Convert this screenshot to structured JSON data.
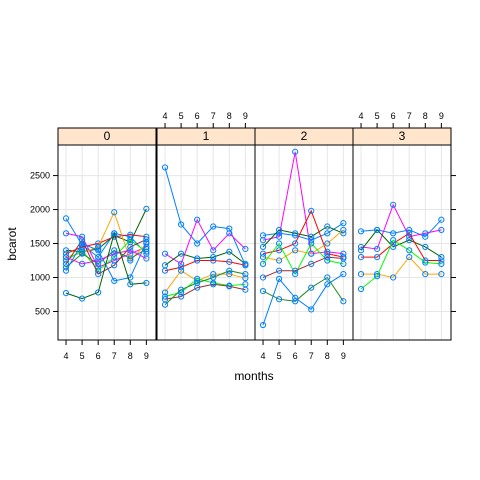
{
  "chart_data": {
    "type": "line",
    "xlabel": "months",
    "ylabel": "bcarot",
    "xlim": [
      3.5,
      9.6
    ],
    "ylim": [
      80,
      2950
    ],
    "x_ticks": [
      4,
      5,
      6,
      7,
      8,
      9
    ],
    "y_ticks": [
      500,
      1000,
      1500,
      2000,
      2500
    ],
    "grid": true,
    "strip_color": "#ffe5cc",
    "panel_border_color": "#000000",
    "grid_color": "#e6e6e6",
    "point_color": "#0080ff",
    "line_colors": [
      "#0080ff",
      "#ff00ff",
      "#006400",
      "#ff0000",
      "#ffa500",
      "#00ff00",
      "#a52a2a",
      "#228b22"
    ],
    "panels": [
      {
        "strip": "0",
        "series": [
          {
            "x": [
              4,
              5,
              6,
              7,
              8,
              9
            ],
            "y": [
              1870,
              1480,
              1300,
              1650,
              1600,
              1350
            ]
          },
          {
            "x": [
              4,
              5,
              6,
              7,
              8,
              9
            ],
            "y": [
              1650,
              1600,
              1150,
              1250,
              1350,
              1450
            ]
          },
          {
            "x": [
              4,
              5,
              6,
              7,
              8,
              9
            ],
            "y": [
              1400,
              1380,
              1420,
              1620,
              1520,
              2010
            ]
          },
          {
            "x": [
              4,
              5,
              6,
              7,
              8,
              9
            ],
            "y": [
              1350,
              1450,
              1500,
              1600,
              1630,
              1600
            ]
          },
          {
            "x": [
              4,
              5,
              6,
              7,
              8,
              9
            ],
            "y": [
              1300,
              1360,
              1450,
              1960,
              1250,
              1500
            ]
          },
          {
            "x": [
              4,
              5,
              6,
              7,
              8,
              9
            ],
            "y": [
              1250,
              1400,
              1100,
              1300,
              1550,
              1380
            ]
          },
          {
            "x": [
              4,
              5,
              6,
              7,
              8,
              9
            ],
            "y": [
              1200,
              1550,
              1050,
              1180,
              1450,
              1560
            ]
          },
          {
            "x": [
              4,
              5,
              6,
              7,
              8,
              9
            ],
            "y": [
              1150,
              1350,
              1200,
              1400,
              1280,
              1420
            ]
          },
          {
            "x": [
              4,
              5,
              6,
              7,
              8,
              9
            ],
            "y": [
              1100,
              1500,
              1400,
              950,
              1000,
              1520
            ]
          },
          {
            "x": [
              4,
              5,
              6,
              7,
              8,
              9
            ],
            "y": [
              1300,
              1200,
              1250,
              1350,
              1400,
              1280
            ]
          },
          {
            "x": [
              4,
              5,
              6,
              7,
              8,
              9
            ],
            "y": [
              770,
              690,
              780,
              1650,
              900,
              920
            ]
          }
        ]
      },
      {
        "strip": "1",
        "series": [
          {
            "x": [
              4,
              5,
              6,
              7,
              8,
              9
            ],
            "y": [
              2620,
              1780,
              1500,
              1750,
              1720,
              1180
            ]
          },
          {
            "x": [
              4,
              5,
              6,
              7,
              8,
              9
            ],
            "y": [
              1350,
              1200,
              1850,
              1400,
              1650,
              1420
            ]
          },
          {
            "x": [
              4,
              5,
              6,
              7,
              8,
              9
            ],
            "y": [
              1180,
              1350,
              1280,
              1300,
              1380,
              1200
            ]
          },
          {
            "x": [
              4,
              5,
              6,
              7,
              8,
              9
            ],
            "y": [
              1100,
              1150,
              1250,
              1250,
              1230,
              1180
            ]
          },
          {
            "x": [
              4,
              5,
              6,
              7,
              8,
              9
            ],
            "y": [
              780,
              1100,
              950,
              1050,
              1050,
              990
            ]
          },
          {
            "x": [
              4,
              5,
              6,
              7,
              8,
              9
            ],
            "y": [
              720,
              780,
              980,
              920,
              880,
              900
            ]
          },
          {
            "x": [
              4,
              5,
              6,
              7,
              8,
              9
            ],
            "y": [
              680,
              720,
              850,
              900,
              870,
              820
            ]
          },
          {
            "x": [
              4,
              5,
              6,
              7,
              8,
              9
            ],
            "y": [
              600,
              820,
              920,
              1000,
              1100,
              1050
            ]
          }
        ]
      },
      {
        "strip": "2",
        "series": [
          {
            "x": [
              4,
              5,
              6,
              7,
              8,
              9
            ],
            "y": [
              1620,
              1650,
              1620,
              1550,
              1650,
              1800
            ]
          },
          {
            "x": [
              4,
              5,
              6,
              7,
              8,
              9
            ],
            "y": [
              1550,
              1600,
              2850,
              1350,
              1380,
              1350
            ]
          },
          {
            "x": [
              4,
              5,
              6,
              7,
              8,
              9
            ],
            "y": [
              1450,
              1700,
              1650,
              1600,
              1750,
              1650
            ]
          },
          {
            "x": [
              4,
              5,
              6,
              7,
              8,
              9
            ],
            "y": [
              1350,
              1400,
              1500,
              1980,
              1350,
              1300
            ]
          },
          {
            "x": [
              4,
              5,
              6,
              7,
              8,
              9
            ],
            "y": [
              1300,
              1250,
              1400,
              1350,
              1500,
              1700
            ]
          },
          {
            "x": [
              4,
              5,
              6,
              7,
              8,
              9
            ],
            "y": [
              1200,
              1500,
              1050,
              1500,
              1250,
              1200
            ]
          },
          {
            "x": [
              4,
              5,
              6,
              7,
              8,
              9
            ],
            "y": [
              1000,
              1100,
              1100,
              1200,
              1300,
              1280
            ]
          },
          {
            "x": [
              4,
              5,
              6,
              7,
              8,
              9
            ],
            "y": [
              800,
              680,
              650,
              850,
              1000,
              650
            ]
          },
          {
            "x": [
              4,
              5,
              6,
              7,
              8,
              9
            ],
            "y": [
              300,
              980,
              700,
              530,
              900,
              1050
            ]
          }
        ]
      },
      {
        "strip": "3",
        "series": [
          {
            "x": [
              4,
              5,
              6,
              7,
              8,
              9
            ],
            "y": [
              1680,
              1700,
              1650,
              1700,
              1600,
              1850
            ]
          },
          {
            "x": [
              4,
              5,
              6,
              7,
              8,
              9
            ],
            "y": [
              1450,
              1420,
              2070,
              1600,
              1650,
              1700
            ]
          },
          {
            "x": [
              4,
              5,
              6,
              7,
              8,
              9
            ],
            "y": [
              1400,
              1700,
              1450,
              1550,
              1450,
              1300
            ]
          },
          {
            "x": [
              4,
              5,
              6,
              7,
              8,
              9
            ],
            "y": [
              1300,
              1300,
              1500,
              1650,
              1250,
              1250
            ]
          },
          {
            "x": [
              4,
              5,
              6,
              7,
              8,
              9
            ],
            "y": [
              1050,
              1050,
              1000,
              1300,
              1050,
              1050
            ]
          },
          {
            "x": [
              4,
              5,
              6,
              7,
              8,
              9
            ],
            "y": [
              830,
              1020,
              1550,
              1400,
              1220,
              1200
            ]
          }
        ]
      }
    ]
  }
}
